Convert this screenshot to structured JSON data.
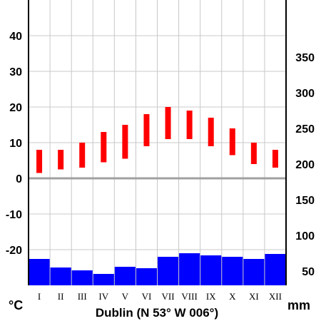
{
  "chart_data": {
    "type": "climate-diagram",
    "title": "Dublin (N 53° W 006°)",
    "categories": [
      "I",
      "II",
      "III",
      "IV",
      "V",
      "VI",
      "VII",
      "VIII",
      "IX",
      "X",
      "XI",
      "XII"
    ],
    "temperature": {
      "unit": "°C",
      "axis_side": "left",
      "ylim": [
        -30,
        50
      ],
      "ticks": [
        40,
        30,
        20,
        10,
        0,
        -10,
        -20
      ],
      "color": "#ff0000",
      "min": [
        1.5,
        2.5,
        3.0,
        4.5,
        5.5,
        9.0,
        11.0,
        11.0,
        9.0,
        6.5,
        4.0,
        3.0
      ],
      "max": [
        8.0,
        8.0,
        10.0,
        13.0,
        15.0,
        18.0,
        20.0,
        19.0,
        17.0,
        14.0,
        10.0,
        8.0
      ]
    },
    "precipitation": {
      "unit": "mm",
      "axis_side": "right",
      "ylim": [
        30,
        430
      ],
      "ticks": [
        350,
        300,
        250,
        200,
        150,
        100,
        50
      ],
      "color": "#0000ff",
      "values": [
        67,
        55,
        51,
        46,
        56,
        54,
        70,
        75,
        72,
        70,
        67,
        74
      ]
    },
    "grid": true
  }
}
